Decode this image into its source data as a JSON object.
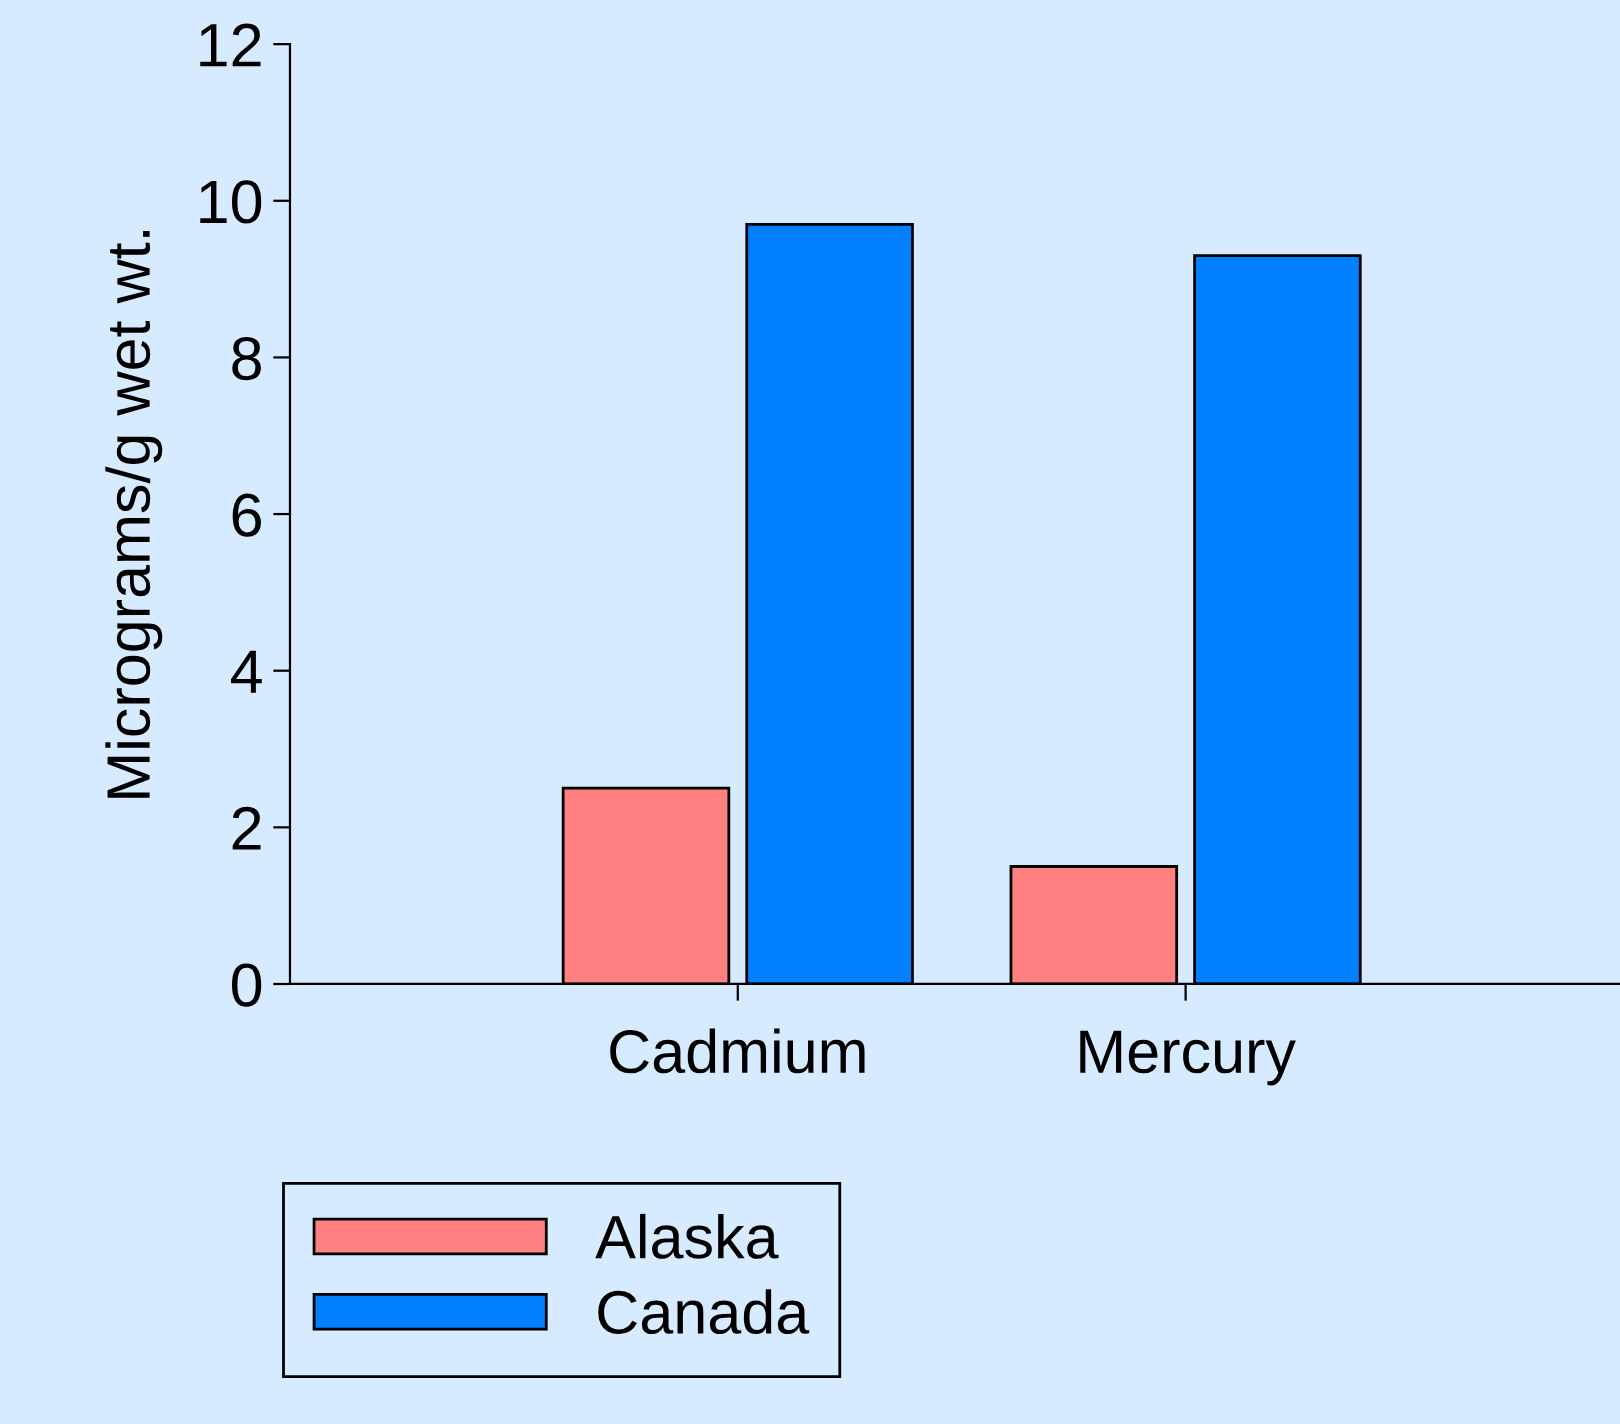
{
  "chart_data": {
    "type": "bar",
    "ylabel": "Micrograms/g wet wt.",
    "categories": [
      "Cadmium",
      "Mercury"
    ],
    "series": [
      {
        "name": "Alaska",
        "color": "#ff8080",
        "values": [
          2.5,
          1.5
        ]
      },
      {
        "name": "Canada",
        "color": "#0080ff",
        "values": [
          9.7,
          9.3
        ]
      }
    ],
    "ylim": [
      0,
      12
    ],
    "yticks": [
      0,
      2,
      4,
      6,
      8,
      10,
      12
    ],
    "grid": false,
    "legend": "bottom left"
  }
}
